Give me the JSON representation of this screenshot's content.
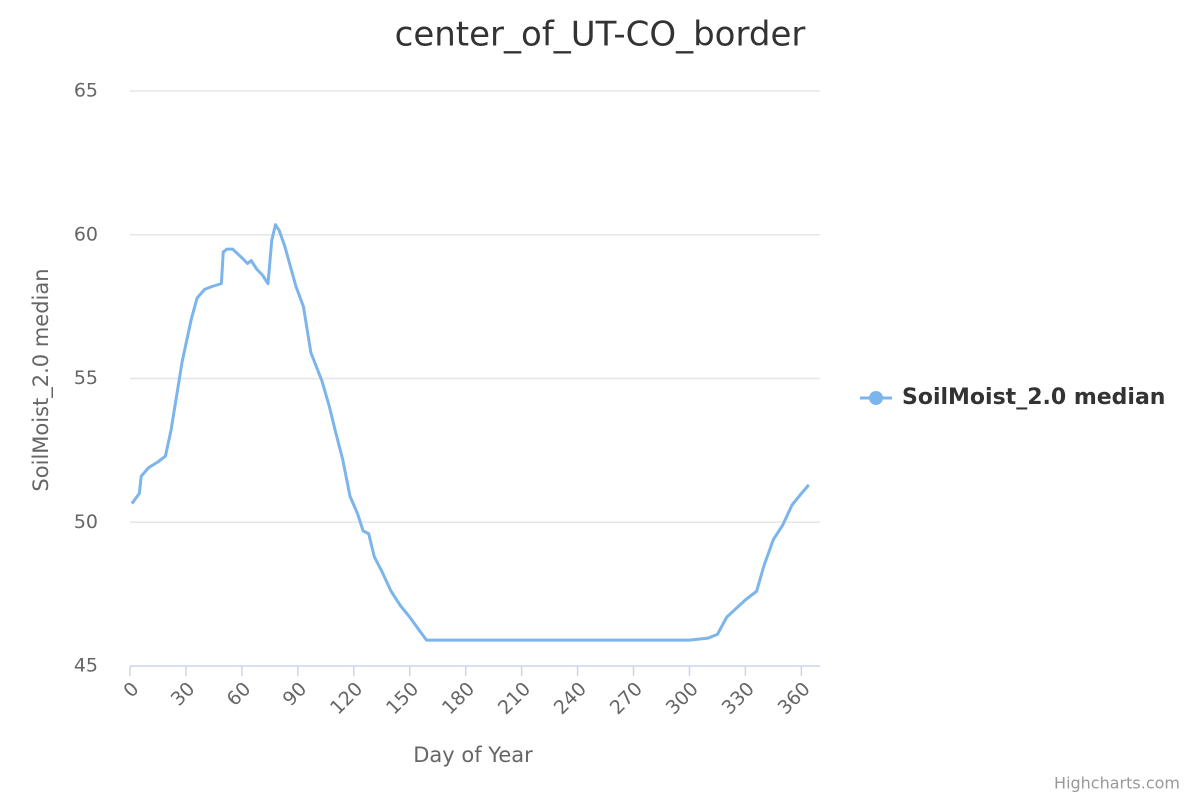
{
  "chart_data": {
    "type": "line",
    "title": "center_of_UT-CO_border",
    "x_label": "Day of Year",
    "y_label": "SoilMoist_2.0 median",
    "credits": "Highcharts.com",
    "xlim": [
      0,
      370
    ],
    "xticks": [
      0,
      30,
      60,
      90,
      120,
      150,
      180,
      210,
      240,
      270,
      300,
      330,
      360
    ],
    "ylim": [
      45,
      65
    ],
    "yticks": [
      45,
      50,
      55,
      60,
      65
    ],
    "grid": true,
    "series": [
      {
        "name": "SoilMoist_2.0 median",
        "color": "#7cb5ec",
        "x": [
          1,
          5,
          6,
          10,
          15,
          19,
          22,
          25,
          28,
          30,
          33,
          36,
          40,
          44,
          49,
          50,
          52,
          55,
          60,
          63,
          65,
          68,
          71,
          74,
          76,
          78,
          80,
          83,
          86,
          89,
          93,
          97,
          100,
          103,
          107,
          110,
          114,
          118,
          122,
          125,
          128,
          131,
          135,
          140,
          145,
          150,
          155,
          159,
          180,
          300,
          310,
          315,
          320,
          325,
          330,
          336,
          340,
          345,
          350,
          355,
          360,
          364
        ],
        "values": [
          50.65,
          51.0,
          51.6,
          51.9,
          52.1,
          52.3,
          53.2,
          54.4,
          55.6,
          56.2,
          57.1,
          57.8,
          58.1,
          58.2,
          58.3,
          59.4,
          59.5,
          59.5,
          59.2,
          59.0,
          59.1,
          58.8,
          58.6,
          58.3,
          59.8,
          60.35,
          60.15,
          59.6,
          58.9,
          58.2,
          57.5,
          55.9,
          55.4,
          54.9,
          54.0,
          53.2,
          52.2,
          50.9,
          50.3,
          49.7,
          49.6,
          48.8,
          48.3,
          47.6,
          47.1,
          46.7,
          46.25,
          45.9,
          45.9,
          45.9,
          45.97,
          46.1,
          46.7,
          47.0,
          47.3,
          47.6,
          48.5,
          49.4,
          49.9,
          50.6,
          51.0,
          51.3
        ]
      }
    ]
  }
}
